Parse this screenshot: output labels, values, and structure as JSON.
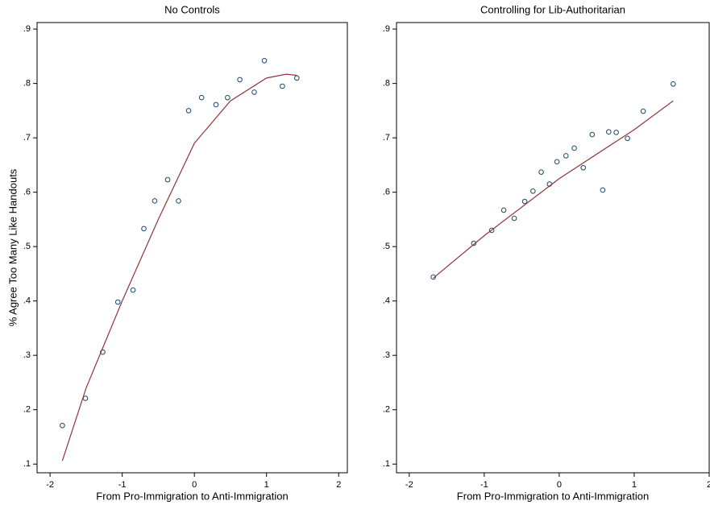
{
  "chart_data": [
    {
      "type": "scatter",
      "title": "No Controls",
      "xlabel": "From Pro-Immigration to Anti-Immigration",
      "ylabel": "% Agree Too Many Like Handouts",
      "xlim": [
        -2.18,
        2.12
      ],
      "ylim": [
        0.084,
        0.912
      ],
      "xticks": [
        -2,
        -1,
        0,
        1,
        2
      ],
      "yticks": [
        {
          "value": 0.1,
          "label": ".1"
        },
        {
          "value": 0.2,
          "label": ".2"
        },
        {
          "value": 0.3,
          "label": ".3"
        },
        {
          "value": 0.4,
          "label": ".4"
        },
        {
          "value": 0.5,
          "label": ".5"
        },
        {
          "value": 0.6,
          "label": ".6"
        },
        {
          "value": 0.7,
          "label": ".7"
        },
        {
          "value": 0.8,
          "label": ".8"
        },
        {
          "value": 0.9,
          "label": ".9"
        }
      ],
      "series": [
        {
          "type": "scatter",
          "color": "#1a476f",
          "x": [
            -1.83,
            -1.51,
            -1.27,
            -1.06,
            -0.85,
            -0.7,
            -0.55,
            -0.37,
            -0.22,
            -0.08,
            0.1,
            0.3,
            0.46,
            0.63,
            0.83,
            0.97,
            1.22,
            1.42
          ],
          "values": [
            0.171,
            0.221,
            0.306,
            0.398,
            0.42,
            0.533,
            0.584,
            0.623,
            0.584,
            0.75,
            0.774,
            0.761,
            0.774,
            0.807,
            0.784,
            0.842,
            0.795,
            0.81
          ]
        },
        {
          "type": "line",
          "color": "#90353b",
          "x": [
            -1.83,
            -1.5,
            -1,
            -0.5,
            0,
            0.5,
            1,
            1.27,
            1.42
          ],
          "values": [
            0.106,
            0.24,
            0.4,
            0.55,
            0.69,
            0.768,
            0.81,
            0.817,
            0.815
          ]
        }
      ]
    },
    {
      "type": "scatter",
      "title": "Controlling for Lib-Authoritarian",
      "xlabel": "From Pro-Immigration to Anti-Immigration",
      "xlim": [
        -2.17,
        2.0
      ],
      "ylim": [
        0.084,
        0.912
      ],
      "xticks": [
        -2,
        -1,
        0,
        1,
        2
      ],
      "yticks": [
        {
          "value": 0.1,
          "label": ".1"
        },
        {
          "value": 0.2,
          "label": ".2"
        },
        {
          "value": 0.3,
          "label": ".3"
        },
        {
          "value": 0.4,
          "label": ".4"
        },
        {
          "value": 0.5,
          "label": ".5"
        },
        {
          "value": 0.6,
          "label": ".6"
        },
        {
          "value": 0.7,
          "label": ".7"
        },
        {
          "value": 0.8,
          "label": ".8"
        },
        {
          "value": 0.9,
          "label": ".9"
        }
      ],
      "series": [
        {
          "type": "scatter",
          "color": "#1a476f",
          "x": [
            -1.68,
            -1.14,
            -0.9,
            -0.74,
            -0.6,
            -0.46,
            -0.35,
            -0.24,
            -0.13,
            -0.03,
            0.09,
            0.2,
            0.32,
            0.44,
            0.58,
            0.66,
            0.76,
            0.91,
            1.12,
            1.52
          ],
          "values": [
            0.444,
            0.506,
            0.53,
            0.567,
            0.552,
            0.583,
            0.602,
            0.637,
            0.615,
            0.656,
            0.667,
            0.681,
            0.645,
            0.706,
            0.604,
            0.711,
            0.71,
            0.699,
            0.749,
            0.799
          ]
        },
        {
          "type": "line",
          "color": "#90353b",
          "x": [
            -1.68,
            -1,
            0,
            1,
            1.52
          ],
          "values": [
            0.442,
            0.52,
            0.625,
            0.715,
            0.768
          ]
        }
      ]
    }
  ]
}
